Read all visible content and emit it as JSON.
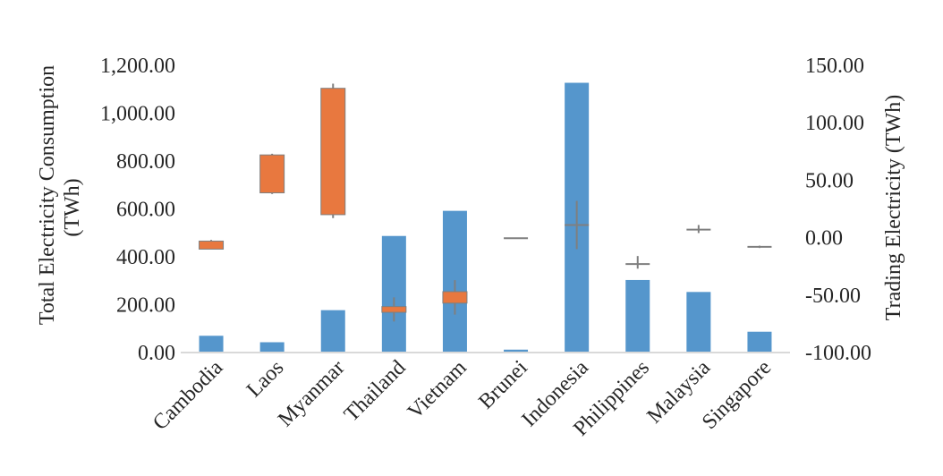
{
  "chart_data": {
    "type": "bar",
    "categories": [
      "Cambodia",
      "Laos",
      "Myanmar",
      "Thailand",
      "Vietnam",
      "Brunei",
      "Indonesia",
      "Philippines",
      "Malaysia",
      "Singapore"
    ],
    "ylabel_left_line1": "Total Electricity Consumption",
    "ylabel_left_line2": "(TWh)",
    "ylabel_right": "Trading Electricity (TWh)",
    "left_axis": {
      "ylim": [
        0,
        1200
      ],
      "ticks": [
        0,
        200,
        400,
        600,
        800,
        1000,
        1200
      ],
      "tick_labels": [
        "0.00",
        "200.00",
        "400.00",
        "600.00",
        "800.00",
        "1,000.00",
        "1,200.00"
      ]
    },
    "right_axis": {
      "ylim": [
        -100,
        150
      ],
      "ticks": [
        -100,
        -50,
        0,
        50,
        100,
        150
      ],
      "tick_labels": [
        "-100.00",
        "-50.00",
        "0.00",
        "50.00",
        "100.00",
        "150.00"
      ]
    },
    "series": [
      {
        "axis": "left",
        "kind": "bar",
        "color": "#5596cc",
        "values": [
          70,
          43,
          177,
          487,
          592,
          12,
          1127,
          303,
          253,
          87
        ]
      },
      {
        "axis": "right",
        "kind": "box",
        "color": "#e8783f",
        "edge_color": "#7f7f7f",
        "boxes": [
          {
            "low": -10,
            "q1": -10,
            "q3": -3,
            "high": -2
          },
          {
            "low": 38,
            "q1": 39,
            "q3": 72,
            "high": 73
          },
          {
            "low": 17,
            "q1": 20,
            "q3": 130,
            "high": 134
          },
          {
            "low": -73,
            "q1": -65,
            "q3": -60,
            "high": -52
          },
          {
            "low": -67,
            "q1": -57,
            "q3": -47,
            "high": -37
          },
          {
            "low": -0.5,
            "q1": -0.5,
            "q3": -0.5,
            "high": -0.5
          },
          {
            "low": -10,
            "q1": 11,
            "q3": 11,
            "high": 32
          },
          {
            "low": -27,
            "q1": -23,
            "q3": -23,
            "high": -16
          },
          {
            "low": 4,
            "q1": 7,
            "q3": 7,
            "high": 11
          },
          {
            "low": -9,
            "q1": -8,
            "q3": -8,
            "high": -7
          }
        ]
      }
    ],
    "grid": false,
    "legend": "none"
  }
}
